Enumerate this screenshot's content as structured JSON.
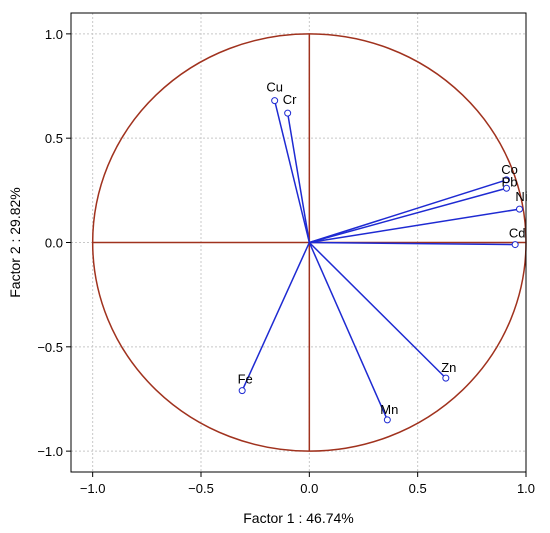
{
  "chart_data": {
    "type": "scatter",
    "title": "",
    "xlabel": "Factor 1 : 46.74%",
    "ylabel": "Factor 2 : 29.82%",
    "xlim": [
      -1.1,
      1.0
    ],
    "ylim": [
      -1.1,
      1.1
    ],
    "xticks": [
      -1.0,
      -0.5,
      0.0,
      0.5,
      1.0
    ],
    "yticks": [
      -1.0,
      -0.5,
      0.0,
      0.5,
      1.0
    ],
    "xtick_labels": [
      "−1.0",
      "−0.5",
      "0.0",
      "0.5",
      "1.0"
    ],
    "ytick_labels": [
      "−1.0",
      "−0.5",
      "0.0",
      "0.5",
      "1.0"
    ],
    "grid": true,
    "unit_circle": true,
    "points": [
      {
        "label": "Cu",
        "x": -0.16,
        "y": 0.68
      },
      {
        "label": "Cr",
        "x": -0.1,
        "y": 0.62
      },
      {
        "label": "Co",
        "x": 0.91,
        "y": 0.3
      },
      {
        "label": "Pb",
        "x": 0.91,
        "y": 0.26
      },
      {
        "label": "Ni",
        "x": 0.97,
        "y": 0.16
      },
      {
        "label": "Cd",
        "x": 0.95,
        "y": -0.01
      },
      {
        "label": "Zn",
        "x": 0.63,
        "y": -0.65
      },
      {
        "label": "Mn",
        "x": 0.36,
        "y": -0.85
      },
      {
        "label": "Fe",
        "x": -0.31,
        "y": -0.71
      }
    ],
    "colors": {
      "circle": "#a0321e",
      "axes": "#a0321e",
      "vectors": "#1e2ad2",
      "grid": "#c8c8c8"
    }
  }
}
